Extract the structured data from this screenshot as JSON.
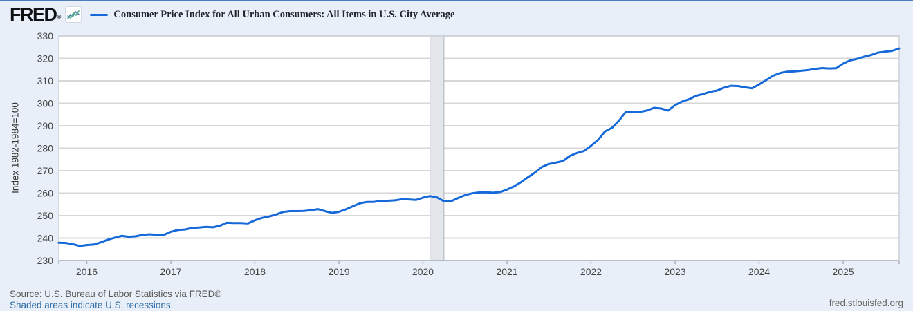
{
  "header": {
    "logo_text": "FRED",
    "logo_mark": "®",
    "legend_label": "Consumer Price Index for All Urban Consumers: All Items in U.S. City Average"
  },
  "footer": {
    "source": "Source: U.S. Bureau of Labor Statistics via FRED®",
    "recession_note": "Shaded areas indicate U.S. recessions.",
    "site_link": "fred.stlouisfed.org"
  },
  "colors": {
    "line": "#1569d9",
    "background": "#e9eff8",
    "top_border": "#4f7dbd",
    "plot_bg": "#ffffff",
    "grid": "#d7d7d7",
    "plot_border": "#cdd2d9",
    "axis": "#a9b1bc",
    "tick_text": "#444444",
    "recession_fill": "#e3e6ea",
    "recession_edge": "#adb2ba",
    "link": "#2d6da8"
  },
  "chart_data": {
    "type": "line",
    "title": "Consumer Price Index for All Urban Consumers: All Items in U.S. City Average",
    "ylabel": "Index 1982-1984=100",
    "ylim": [
      230,
      330
    ],
    "y_ticks": [
      230,
      240,
      250,
      260,
      270,
      280,
      290,
      300,
      310,
      320,
      330
    ],
    "x_tick_years": [
      "2016",
      "2017",
      "2018",
      "2019",
      "2020",
      "2021",
      "2022",
      "2023",
      "2024",
      "2025"
    ],
    "x_range": [
      "2015-09",
      "2025-09"
    ],
    "grid": true,
    "legend_position": "top",
    "recession_band": {
      "start": "2020-02",
      "end": "2020-04"
    },
    "series": [
      {
        "name": "Consumer Price Index for All Urban Consumers: All Items in U.S. City Average",
        "frequency": "monthly",
        "start": "2015-09",
        "values": [
          237.9,
          237.8,
          237.3,
          236.5,
          236.9,
          237.1,
          238.1,
          239.3,
          240.2,
          241.0,
          240.6,
          240.8,
          241.4,
          241.7,
          241.4,
          241.4,
          242.8,
          243.6,
          243.8,
          244.5,
          244.7,
          245.0,
          244.8,
          245.5,
          246.8,
          246.7,
          246.7,
          246.5,
          247.9,
          249.0,
          249.6,
          250.5,
          251.6,
          252.0,
          252.0,
          252.1,
          252.4,
          252.9,
          252.0,
          251.2,
          251.7,
          252.8,
          254.2,
          255.5,
          256.1,
          256.1,
          256.6,
          256.6,
          256.8,
          257.3,
          257.2,
          257.0,
          258.0,
          258.7,
          258.1,
          256.4,
          256.4,
          257.8,
          259.1,
          259.9,
          260.3,
          260.4,
          260.2,
          260.5,
          261.6,
          263.0,
          264.9,
          267.1,
          269.2,
          271.7,
          273.0,
          273.6,
          274.3,
          276.6,
          277.9,
          278.8,
          281.1,
          283.7,
          287.5,
          289.1,
          292.3,
          296.3,
          296.3,
          296.2,
          296.8,
          298.0,
          297.7,
          296.8,
          299.2,
          300.8,
          301.8,
          303.4,
          304.1,
          305.1,
          305.7,
          307.0,
          307.8,
          307.7,
          307.1,
          306.7,
          308.4,
          310.3,
          312.3,
          313.5,
          314.1,
          314.2,
          314.5,
          314.8,
          315.3,
          315.7,
          315.5,
          315.6,
          317.7,
          319.1,
          319.8,
          320.8,
          321.5,
          322.6,
          323.0,
          323.4,
          324.4
        ]
      }
    ]
  }
}
